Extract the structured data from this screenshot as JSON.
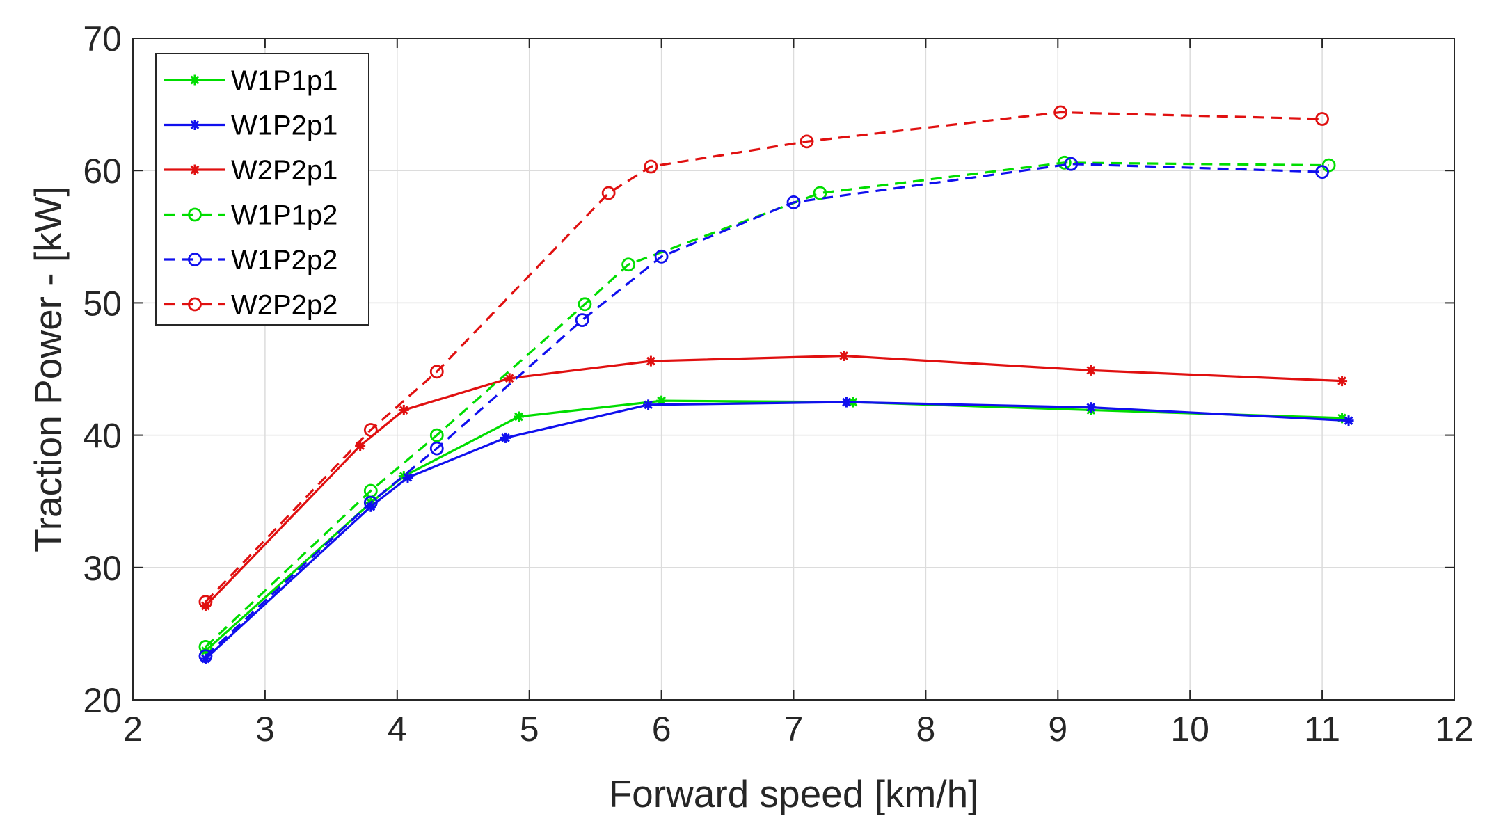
{
  "chart_data": {
    "type": "line",
    "title": "",
    "xlabel": "Forward speed [km/h]",
    "ylabel": "Traction Power - [kW]",
    "xlim": [
      2,
      12
    ],
    "ylim": [
      20,
      70
    ],
    "xticks": [
      2,
      3,
      4,
      5,
      6,
      7,
      8,
      9,
      10,
      11,
      12
    ],
    "yticks": [
      20,
      30,
      40,
      50,
      60,
      70
    ],
    "grid": true,
    "legend_position": "top-left",
    "series": [
      {
        "name": "W1P1p1",
        "color": "#00dd00",
        "line_style": "solid",
        "marker": "asterisk",
        "x": [
          2.55,
          3.8,
          4.05,
          4.92,
          6.0,
          7.45,
          9.25,
          11.15
        ],
        "y": [
          23.7,
          34.9,
          36.9,
          41.4,
          42.6,
          42.5,
          41.9,
          41.3
        ]
      },
      {
        "name": "W1P2p1",
        "color": "#1010ee",
        "line_style": "solid",
        "marker": "asterisk",
        "x": [
          2.55,
          3.8,
          4.08,
          4.82,
          5.9,
          7.4,
          9.25,
          11.2
        ],
        "y": [
          23.1,
          34.6,
          36.8,
          39.8,
          42.3,
          42.5,
          42.1,
          41.1
        ]
      },
      {
        "name": "W2P2p1",
        "color": "#e01010",
        "line_style": "solid",
        "marker": "asterisk",
        "x": [
          2.55,
          3.72,
          4.05,
          4.85,
          5.92,
          7.38,
          9.25,
          11.15
        ],
        "y": [
          27.1,
          39.2,
          41.9,
          44.3,
          45.6,
          46.0,
          44.9,
          44.1
        ]
      },
      {
        "name": "W1P1p2",
        "color": "#00dd00",
        "line_style": "dashed",
        "marker": "circle",
        "x": [
          2.55,
          3.8,
          4.3,
          5.42,
          5.75,
          7.2,
          9.05,
          11.05
        ],
        "y": [
          24.0,
          35.8,
          40.0,
          49.9,
          52.9,
          58.3,
          60.6,
          60.4
        ]
      },
      {
        "name": "W1P2p2",
        "color": "#1010ee",
        "line_style": "dashed",
        "marker": "circle",
        "x": [
          2.55,
          3.8,
          4.3,
          5.4,
          6.0,
          7.0,
          9.1,
          11.0
        ],
        "y": [
          23.3,
          34.9,
          39.0,
          48.7,
          53.5,
          57.6,
          60.5,
          59.9
        ]
      },
      {
        "name": "W2P2p2",
        "color": "#e01010",
        "line_style": "dashed",
        "marker": "circle",
        "x": [
          2.55,
          3.8,
          4.3,
          5.6,
          5.92,
          7.1,
          9.02,
          11.0
        ],
        "y": [
          27.4,
          40.4,
          44.8,
          58.3,
          60.3,
          62.2,
          64.4,
          63.9
        ]
      }
    ]
  }
}
